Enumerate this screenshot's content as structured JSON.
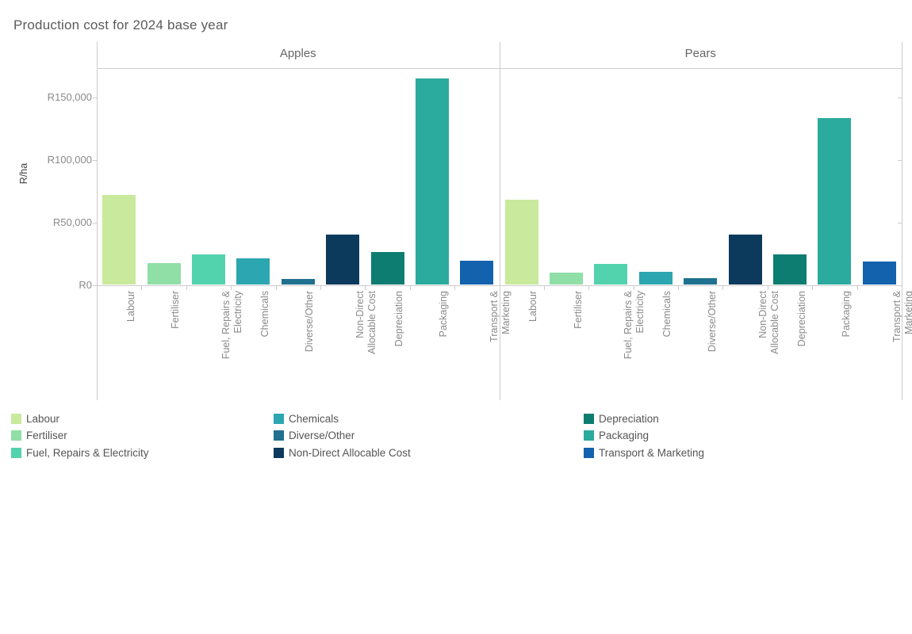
{
  "title": "Production cost for 2024 base year",
  "chart_data": {
    "type": "bar",
    "title": "Production cost for 2024 base year",
    "xlabel": "",
    "ylabel": "R/ha",
    "ylim": [
      0,
      173000
    ],
    "grid": false,
    "legend_position": "bottom",
    "yticks": [
      {
        "label": "R0",
        "value": 0
      },
      {
        "label": "R50,000",
        "value": 50000
      },
      {
        "label": "R100,000",
        "value": 100000
      },
      {
        "label": "R150,000",
        "value": 150000
      }
    ],
    "categories": [
      "Labour",
      "Fertiliser",
      "Fuel, Repairs & Electricity",
      "Chemicals",
      "Diverse/Other",
      "Non-Direct Allocable Cost",
      "Depreciation",
      "Packaging",
      "Transport & Marketing"
    ],
    "category_label_lines": [
      [
        "Labour"
      ],
      [
        "Fertiliser"
      ],
      [
        "Fuel, Repairs &",
        "Electricity"
      ],
      [
        "Chemicals"
      ],
      [
        "Diverse/Other"
      ],
      [
        "Non-Direct",
        "Allocable Cost"
      ],
      [
        "Depreciation"
      ],
      [
        "Packaging"
      ],
      [
        "Transport &",
        "Marketing"
      ]
    ],
    "colors": [
      "#c9e99c",
      "#90dfa7",
      "#53d2ae",
      "#2ca6b0",
      "#20718f",
      "#0b3a5d",
      "#0d7d71",
      "#2bab9e",
      "#1262ad"
    ],
    "panels": [
      {
        "name": "Apples",
        "values": [
          72000,
          17500,
          24500,
          21000,
          4500,
          40500,
          26000,
          165000,
          19500
        ]
      },
      {
        "name": "Pears",
        "values": [
          68000,
          10000,
          17000,
          10500,
          5500,
          40500,
          24500,
          133000,
          18500
        ]
      }
    ]
  },
  "legend": {
    "column_item_indexes": [
      [
        0,
        1,
        2
      ],
      [
        3,
        4,
        5
      ],
      [
        6,
        7,
        8
      ]
    ]
  }
}
